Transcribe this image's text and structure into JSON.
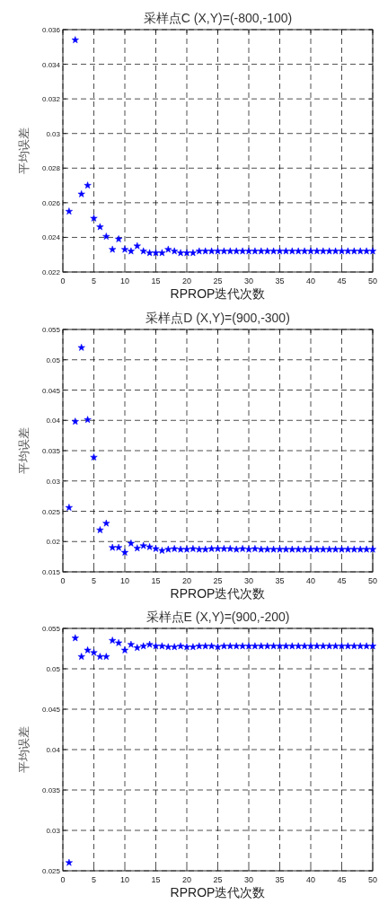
{
  "chart_data": [
    {
      "type": "scatter",
      "title": "采样点C (X,Y)=(-800,-100)",
      "xlabel": "RPROP迭代次数",
      "ylabel": "平均误差",
      "color": "#0000ff",
      "marker": "star",
      "grid": true,
      "x": [
        1,
        2,
        3,
        4,
        5,
        6,
        7,
        8,
        9,
        10,
        11,
        12,
        13,
        14,
        15,
        16,
        17,
        18,
        19,
        20,
        21,
        22,
        23,
        24,
        25,
        26,
        27,
        28,
        29,
        30,
        31,
        32,
        33,
        34,
        35,
        36,
        37,
        38,
        39,
        40,
        41,
        42,
        43,
        44,
        45,
        46,
        47,
        48,
        49,
        50
      ],
      "values": [
        0.0255,
        0.0354,
        0.0265,
        0.027,
        0.0251,
        0.0246,
        0.02405,
        0.0233,
        0.0239,
        0.0233,
        0.0232,
        0.0235,
        0.0232,
        0.0231,
        0.0231,
        0.0231,
        0.0233,
        0.0232,
        0.0231,
        0.0231,
        0.0231,
        0.0232,
        0.0232,
        0.0232,
        0.0232,
        0.0232,
        0.0232,
        0.0232,
        0.0232,
        0.0232,
        0.0232,
        0.0232,
        0.0232,
        0.0232,
        0.0232,
        0.0232,
        0.0232,
        0.0232,
        0.0232,
        0.0232,
        0.0232,
        0.0232,
        0.0232,
        0.0232,
        0.0232,
        0.0232,
        0.0232,
        0.0232,
        0.0232,
        0.0232
      ],
      "xlim": [
        0,
        50
      ],
      "xticks": [
        0,
        5,
        10,
        15,
        20,
        25,
        30,
        35,
        40,
        45,
        50
      ],
      "ylim": [
        0.022,
        0.036
      ],
      "yticks": [
        0.022,
        0.024,
        0.026,
        0.028,
        0.03,
        0.032,
        0.034,
        0.036
      ]
    },
    {
      "type": "scatter",
      "title": "采样点D (X,Y)=(900,-300)",
      "xlabel": "RPROP迭代次数",
      "ylabel": "平均误差",
      "color": "#0000ff",
      "marker": "star",
      "grid": true,
      "x": [
        1,
        2,
        3,
        4,
        5,
        6,
        7,
        8,
        9,
        10,
        11,
        12,
        13,
        14,
        15,
        16,
        17,
        18,
        19,
        20,
        21,
        22,
        23,
        24,
        25,
        26,
        27,
        28,
        29,
        30,
        31,
        32,
        33,
        34,
        35,
        36,
        37,
        38,
        39,
        40,
        41,
        42,
        43,
        44,
        45,
        46,
        47,
        48,
        49,
        50
      ],
      "values": [
        0.0256,
        0.0398,
        0.052,
        0.0401,
        0.0339,
        0.0219,
        0.023,
        0.019,
        0.019,
        0.0182,
        0.0197,
        0.0189,
        0.0193,
        0.0191,
        0.0188,
        0.0185,
        0.0187,
        0.0188,
        0.0187,
        0.0187,
        0.0188,
        0.0187,
        0.0187,
        0.0188,
        0.0188,
        0.0188,
        0.0188,
        0.0187,
        0.0188,
        0.0187,
        0.0188,
        0.0187,
        0.0187,
        0.0187,
        0.0187,
        0.0187,
        0.0187,
        0.0187,
        0.0187,
        0.0187,
        0.0187,
        0.0187,
        0.0187,
        0.0187,
        0.0187,
        0.0187,
        0.0187,
        0.0187,
        0.0187,
        0.0187
      ],
      "xlim": [
        0,
        50
      ],
      "xticks": [
        0,
        5,
        10,
        15,
        20,
        25,
        30,
        35,
        40,
        45,
        50
      ],
      "ylim": [
        0.015,
        0.055
      ],
      "yticks": [
        0.015,
        0.02,
        0.025,
        0.03,
        0.035,
        0.04,
        0.045,
        0.05,
        0.055
      ]
    },
    {
      "type": "scatter",
      "title": "采样点E (X,Y)=(900,-200)",
      "xlabel": "RPROP迭代次数",
      "ylabel": "平均误差",
      "color": "#0000ff",
      "marker": "star",
      "grid": true,
      "x": [
        1,
        2,
        3,
        4,
        5,
        6,
        7,
        8,
        9,
        10,
        11,
        12,
        13,
        14,
        15,
        16,
        17,
        18,
        19,
        20,
        21,
        22,
        23,
        24,
        25,
        26,
        27,
        28,
        29,
        30,
        31,
        32,
        33,
        34,
        35,
        36,
        37,
        38,
        39,
        40,
        41,
        42,
        43,
        44,
        45,
        46,
        47,
        48,
        49,
        50
      ],
      "values": [
        0.026,
        0.0538,
        0.0515,
        0.0523,
        0.052,
        0.0515,
        0.0515,
        0.0535,
        0.0532,
        0.0523,
        0.053,
        0.0526,
        0.0528,
        0.053,
        0.0528,
        0.0528,
        0.0527,
        0.0527,
        0.0528,
        0.0527,
        0.0527,
        0.0528,
        0.0528,
        0.0528,
        0.0527,
        0.0528,
        0.0528,
        0.0528,
        0.0528,
        0.0528,
        0.0528,
        0.0528,
        0.0528,
        0.0528,
        0.0528,
        0.0528,
        0.0528,
        0.0528,
        0.0528,
        0.0528,
        0.0528,
        0.0528,
        0.0528,
        0.0528,
        0.0528,
        0.0528,
        0.0528,
        0.0528,
        0.0528,
        0.0528
      ],
      "xlim": [
        0,
        50
      ],
      "xticks": [
        0,
        5,
        10,
        15,
        20,
        25,
        30,
        35,
        40,
        45,
        50
      ],
      "ylim": [
        0.025,
        0.055
      ],
      "yticks": [
        0.025,
        0.03,
        0.035,
        0.04,
        0.045,
        0.05,
        0.055
      ]
    }
  ]
}
